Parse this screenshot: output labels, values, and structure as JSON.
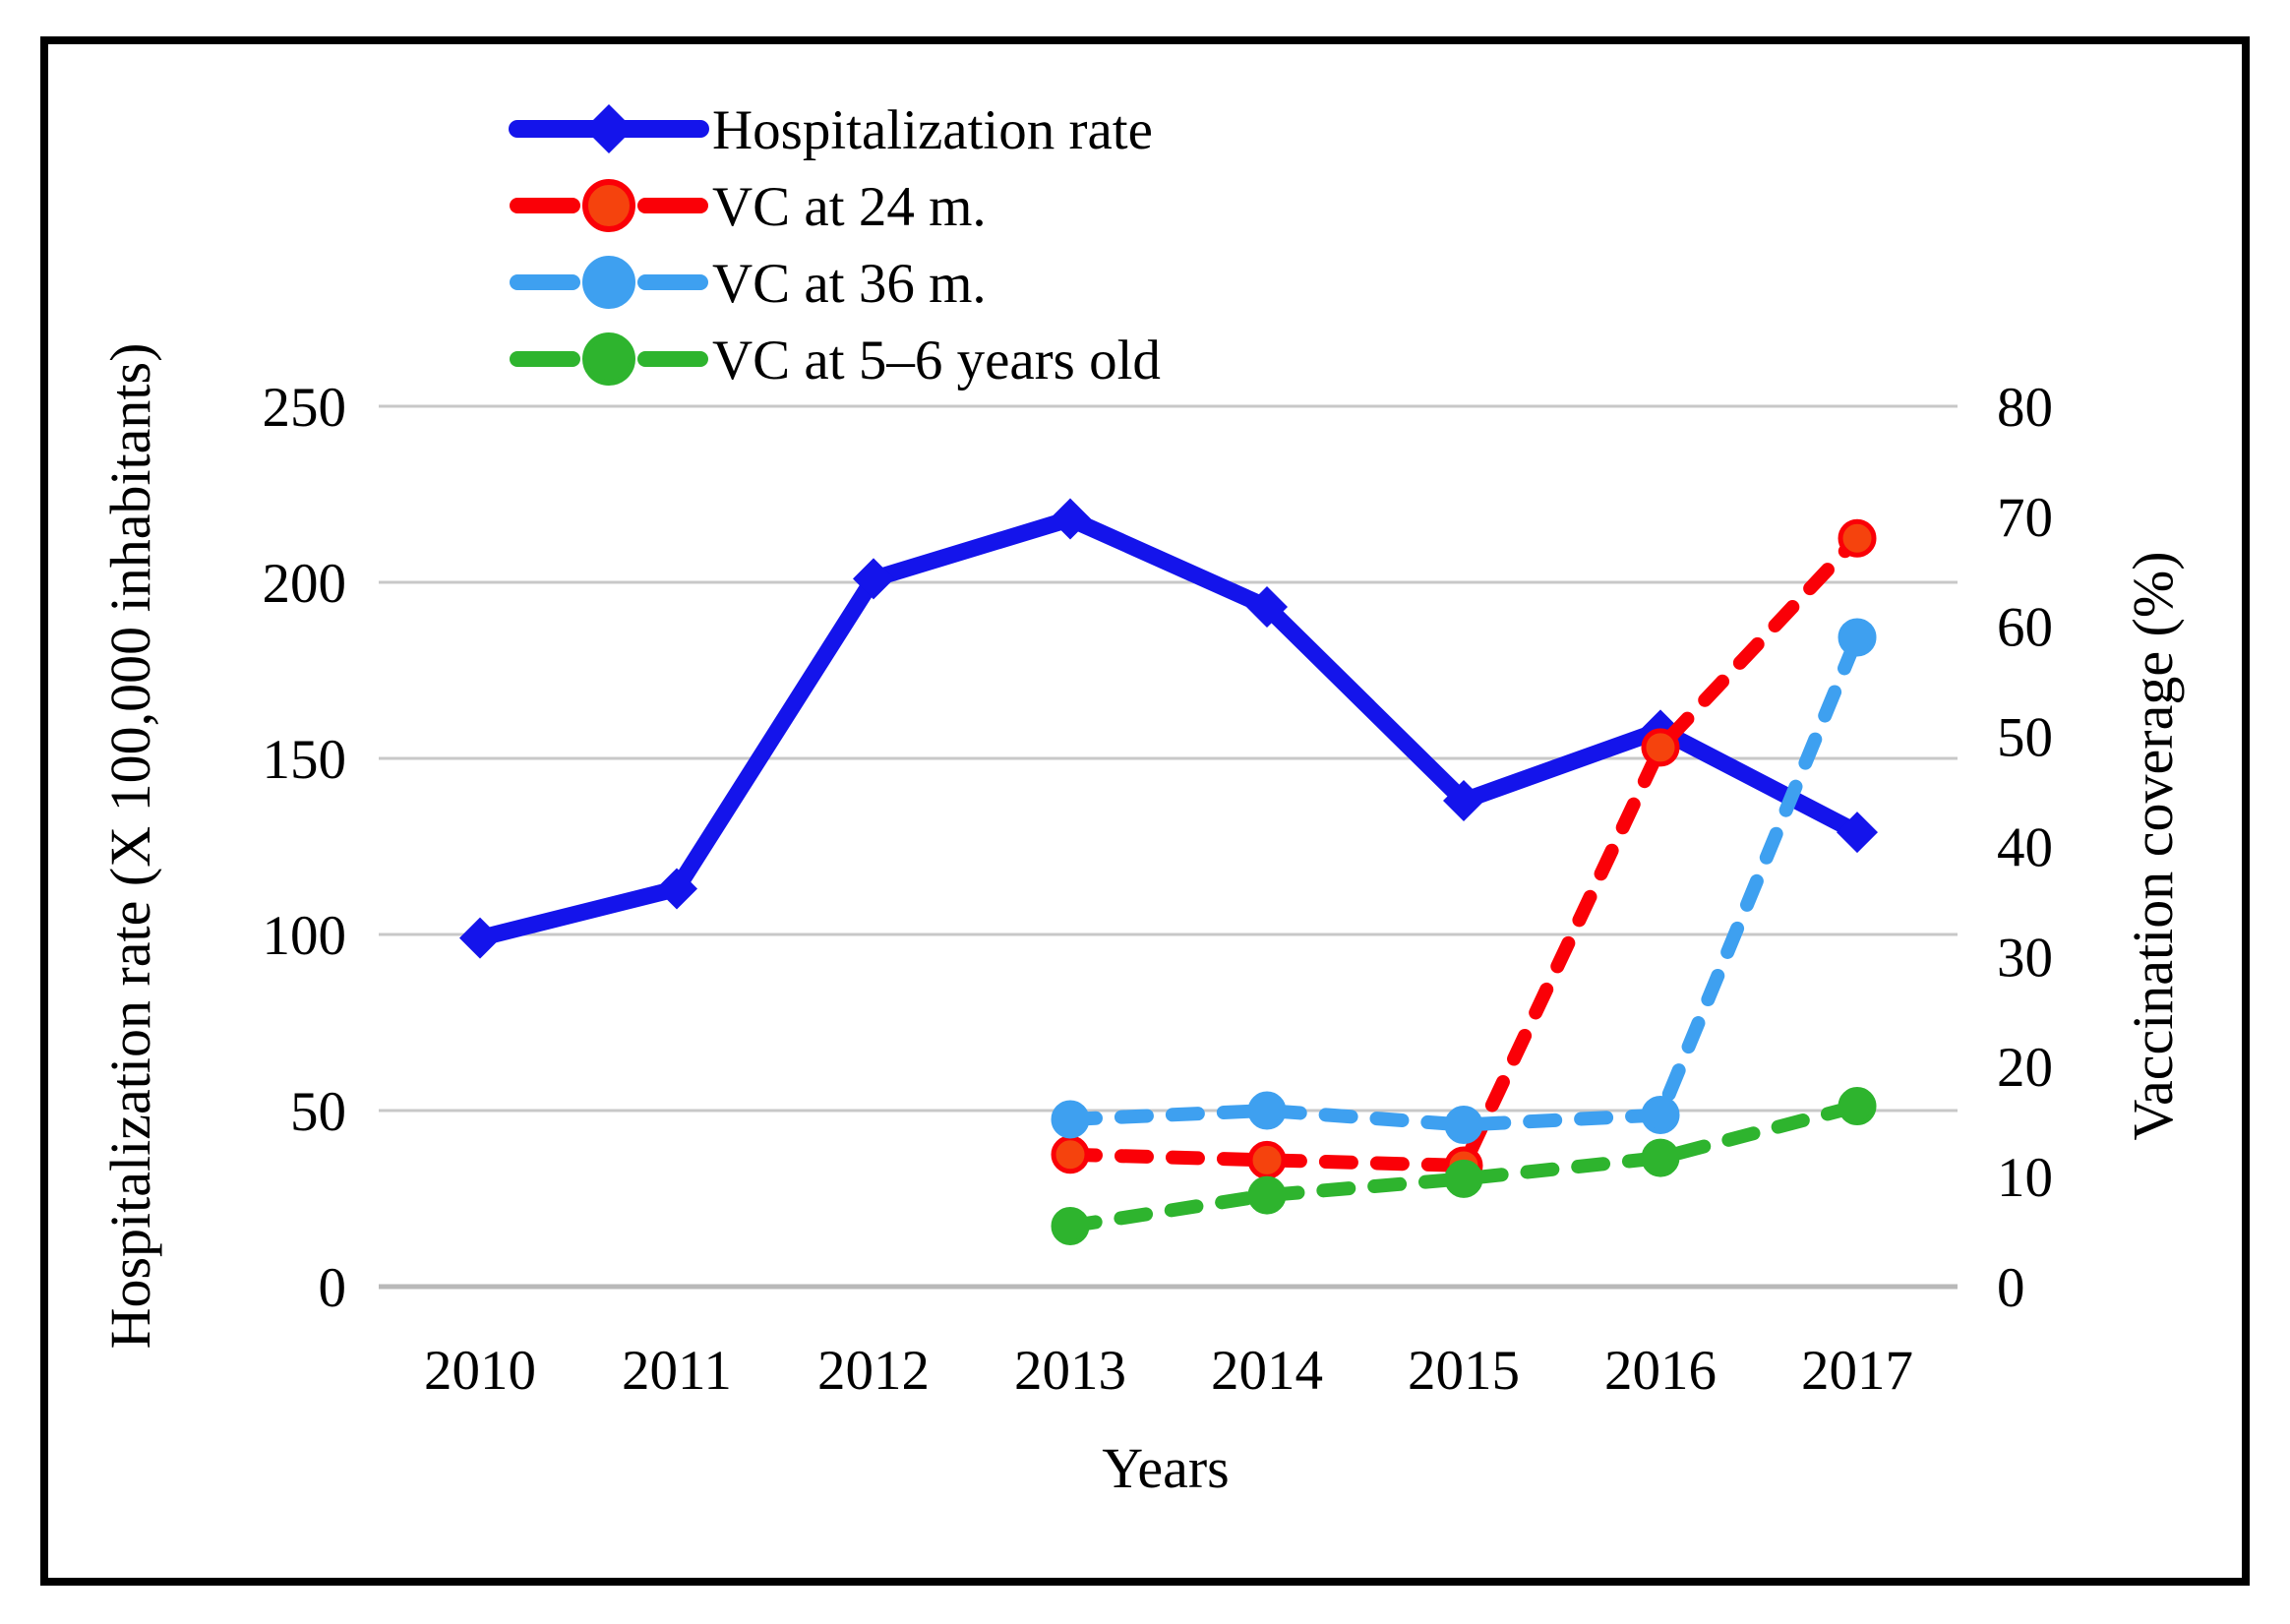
{
  "figure": {
    "background_color": "#ffffff",
    "frame_color": "#000000",
    "gridline_color": "#c8c8c8",
    "zero_line_color": "#b9b9b9"
  },
  "chart_data": {
    "type": "line",
    "x": [
      "2010",
      "2011",
      "2012",
      "2013",
      "2014",
      "2015",
      "2016",
      "2017"
    ],
    "xlabel": "Years",
    "ylabel_left": "Hospitalization rate (X 100,000 inhabitants)",
    "ylabel_right": "Vaccination coverage (%)",
    "y_left_ticks": [
      0,
      50,
      100,
      150,
      200,
      250
    ],
    "y_right_ticks": [
      0,
      10,
      20,
      30,
      40,
      50,
      60,
      70,
      80
    ],
    "ylim_left": [
      0,
      250
    ],
    "ylim_right": [
      0,
      80
    ],
    "grid": "horizontal",
    "legend_position": "top-left-inside",
    "series": [
      {
        "name": "Hospitalization rate",
        "slug": "hospitalization-rate",
        "axis": "left",
        "color": "#1414eb",
        "marker": "diamond",
        "line": "solid",
        "values": [
          99,
          113,
          201,
          218,
          193,
          138,
          158,
          129
        ]
      },
      {
        "name": "VC at 24 m.",
        "slug": "vc-24-months",
        "axis": "right",
        "color": "#fa0007",
        "marker": "circle",
        "marker_fill": "#f5430d",
        "line": "dashed",
        "values": [
          null,
          null,
          null,
          12,
          11.5,
          11,
          49,
          68
        ]
      },
      {
        "name": "VC at 36 m.",
        "slug": "vc-36-months",
        "axis": "right",
        "color": "#3ea0f0",
        "marker": "circle",
        "line": "dashed",
        "values": [
          null,
          null,
          null,
          15.2,
          16,
          14.7,
          15.6,
          59
        ]
      },
      {
        "name": "VC at 5–6 years old",
        "slug": "vc-5-6-years",
        "axis": "right",
        "color": "#2eb42e",
        "marker": "circle",
        "line": "dashed",
        "values": [
          null,
          null,
          null,
          5.5,
          8.3,
          9.8,
          11.7,
          16.4
        ]
      }
    ]
  }
}
